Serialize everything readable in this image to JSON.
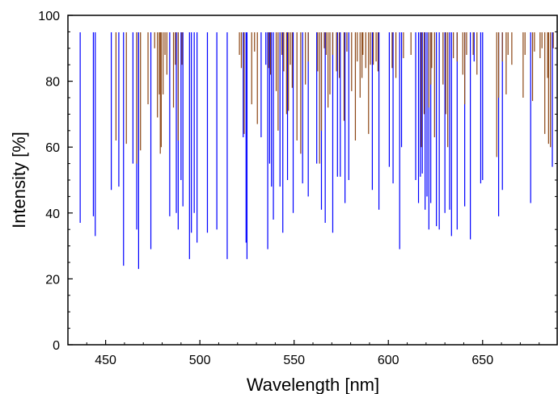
{
  "chart_data": {
    "type": "bar",
    "xlabel": "Wavelength [nm]",
    "ylabel": "Intensity [%]",
    "xlim": [
      430,
      690
    ],
    "ylim": [
      0,
      100
    ],
    "xticks": [
      450,
      500,
      550,
      600,
      650
    ],
    "yticks": [
      0,
      20,
      40,
      60,
      80,
      100
    ],
    "grid": false,
    "series": [
      {
        "color": "#0000ff",
        "lines": [
          [
            436.5,
            37
          ],
          [
            443.5,
            39
          ],
          [
            444.5,
            33
          ],
          [
            453,
            47
          ],
          [
            457,
            48
          ],
          [
            459.5,
            24
          ],
          [
            464.5,
            55
          ],
          [
            466.5,
            35
          ],
          [
            467.5,
            23
          ],
          [
            474,
            29
          ],
          [
            484,
            39
          ],
          [
            487.5,
            40
          ],
          [
            488.5,
            35
          ],
          [
            490,
            50
          ],
          [
            491,
            42
          ],
          [
            494.5,
            26
          ],
          [
            495.5,
            34
          ],
          [
            497,
            40
          ],
          [
            498.5,
            31
          ],
          [
            504,
            34
          ],
          [
            509,
            35
          ],
          [
            514.5,
            26
          ],
          [
            523,
            63
          ],
          [
            524.5,
            31
          ],
          [
            525,
            26
          ],
          [
            532.5,
            63
          ],
          [
            535,
            85
          ],
          [
            536,
            29
          ],
          [
            537,
            55
          ],
          [
            538,
            48
          ],
          [
            539,
            38
          ],
          [
            542.5,
            48
          ],
          [
            544,
            34
          ],
          [
            546.5,
            50
          ],
          [
            549.5,
            40
          ],
          [
            554.5,
            49
          ],
          [
            557.5,
            45
          ],
          [
            562,
            55
          ],
          [
            564.5,
            41
          ],
          [
            566.5,
            37
          ],
          [
            570.5,
            34
          ],
          [
            573,
            51
          ],
          [
            574.5,
            51
          ],
          [
            577,
            43
          ],
          [
            579,
            50
          ],
          [
            591.5,
            47
          ],
          [
            595,
            41
          ],
          [
            600.5,
            54
          ],
          [
            602.5,
            49
          ],
          [
            606,
            29
          ],
          [
            607,
            60
          ],
          [
            614.5,
            50
          ],
          [
            616,
            43
          ],
          [
            617,
            51
          ],
          [
            618,
            52
          ],
          [
            619.5,
            41
          ],
          [
            620.5,
            45
          ],
          [
            621.5,
            35
          ],
          [
            622.5,
            43
          ],
          [
            625.5,
            36
          ],
          [
            627,
            35
          ],
          [
            630,
            40
          ],
          [
            632.5,
            41
          ],
          [
            633.5,
            33
          ],
          [
            636.5,
            35
          ],
          [
            640.5,
            42
          ],
          [
            643.5,
            32
          ],
          [
            645.5,
            86
          ],
          [
            649,
            49
          ],
          [
            650,
            50
          ],
          [
            658.5,
            39
          ],
          [
            660.5,
            47
          ],
          [
            675.5,
            43
          ],
          [
            687,
            54
          ]
        ]
      },
      {
        "color": "#8b4513",
        "lines": [
          [
            455.5,
            62
          ],
          [
            461,
            61
          ],
          [
            466.5,
            55
          ],
          [
            468.5,
            59
          ],
          [
            472.5,
            73
          ],
          [
            476,
            90
          ],
          [
            477.5,
            69
          ],
          [
            478.5,
            76
          ],
          [
            479,
            58
          ],
          [
            479.5,
            60
          ],
          [
            480.5,
            76
          ],
          [
            481.5,
            88
          ],
          [
            482.5,
            82
          ],
          [
            486,
            72
          ],
          [
            487,
            85
          ],
          [
            488.5,
            62
          ],
          [
            490.5,
            85
          ],
          [
            521,
            88
          ],
          [
            522,
            84
          ],
          [
            523.5,
            64
          ],
          [
            527.5,
            73
          ],
          [
            529,
            89
          ],
          [
            530.5,
            67
          ],
          [
            536.5,
            84
          ],
          [
            537.5,
            82
          ],
          [
            540.5,
            77
          ],
          [
            541.5,
            65
          ],
          [
            543.5,
            88
          ],
          [
            544.5,
            83
          ],
          [
            546,
            70
          ],
          [
            547,
            71
          ],
          [
            548,
            85
          ],
          [
            549,
            78
          ],
          [
            551.5,
            62
          ],
          [
            553.5,
            58
          ],
          [
            556,
            79
          ],
          [
            557.5,
            86
          ],
          [
            562.5,
            83
          ],
          [
            563.5,
            55
          ],
          [
            564.5,
            65
          ],
          [
            566,
            90
          ],
          [
            567,
            88
          ],
          [
            568,
            72
          ],
          [
            569,
            76
          ],
          [
            570.5,
            88
          ],
          [
            572.5,
            83
          ],
          [
            574,
            81
          ],
          [
            576.5,
            68
          ],
          [
            578,
            89
          ],
          [
            580.5,
            77
          ],
          [
            582.5,
            62
          ],
          [
            583.5,
            86
          ],
          [
            585,
            75
          ],
          [
            586,
            81
          ],
          [
            586.5,
            88
          ],
          [
            588,
            84
          ],
          [
            589.5,
            64
          ],
          [
            590.5,
            85
          ],
          [
            592,
            85
          ],
          [
            593.5,
            86
          ],
          [
            594.5,
            83
          ],
          [
            602,
            84
          ],
          [
            604,
            81
          ],
          [
            608,
            87
          ],
          [
            612,
            88
          ],
          [
            617.5,
            60
          ],
          [
            619,
            70
          ],
          [
            621.5,
            72
          ],
          [
            622.5,
            79
          ],
          [
            623,
            84
          ],
          [
            624.5,
            63
          ],
          [
            629,
            79
          ],
          [
            630.5,
            70
          ],
          [
            631.5,
            60
          ],
          [
            634.5,
            87
          ],
          [
            636.5,
            86
          ],
          [
            639.5,
            82
          ],
          [
            640.5,
            73
          ],
          [
            641.5,
            88
          ],
          [
            645,
            88
          ],
          [
            647,
            82
          ],
          [
            657.5,
            57
          ],
          [
            658.5,
            75
          ],
          [
            660.5,
            86
          ],
          [
            662.5,
            76
          ],
          [
            663.5,
            88
          ],
          [
            665.5,
            85
          ],
          [
            671.5,
            75
          ],
          [
            672.5,
            88
          ],
          [
            676.5,
            74
          ],
          [
            677.5,
            89
          ],
          [
            680.5,
            87
          ],
          [
            681.5,
            90
          ],
          [
            683,
            64
          ],
          [
            684.5,
            81
          ],
          [
            685,
            61
          ],
          [
            686,
            60
          ],
          [
            687.5,
            90
          ]
        ]
      }
    ]
  }
}
